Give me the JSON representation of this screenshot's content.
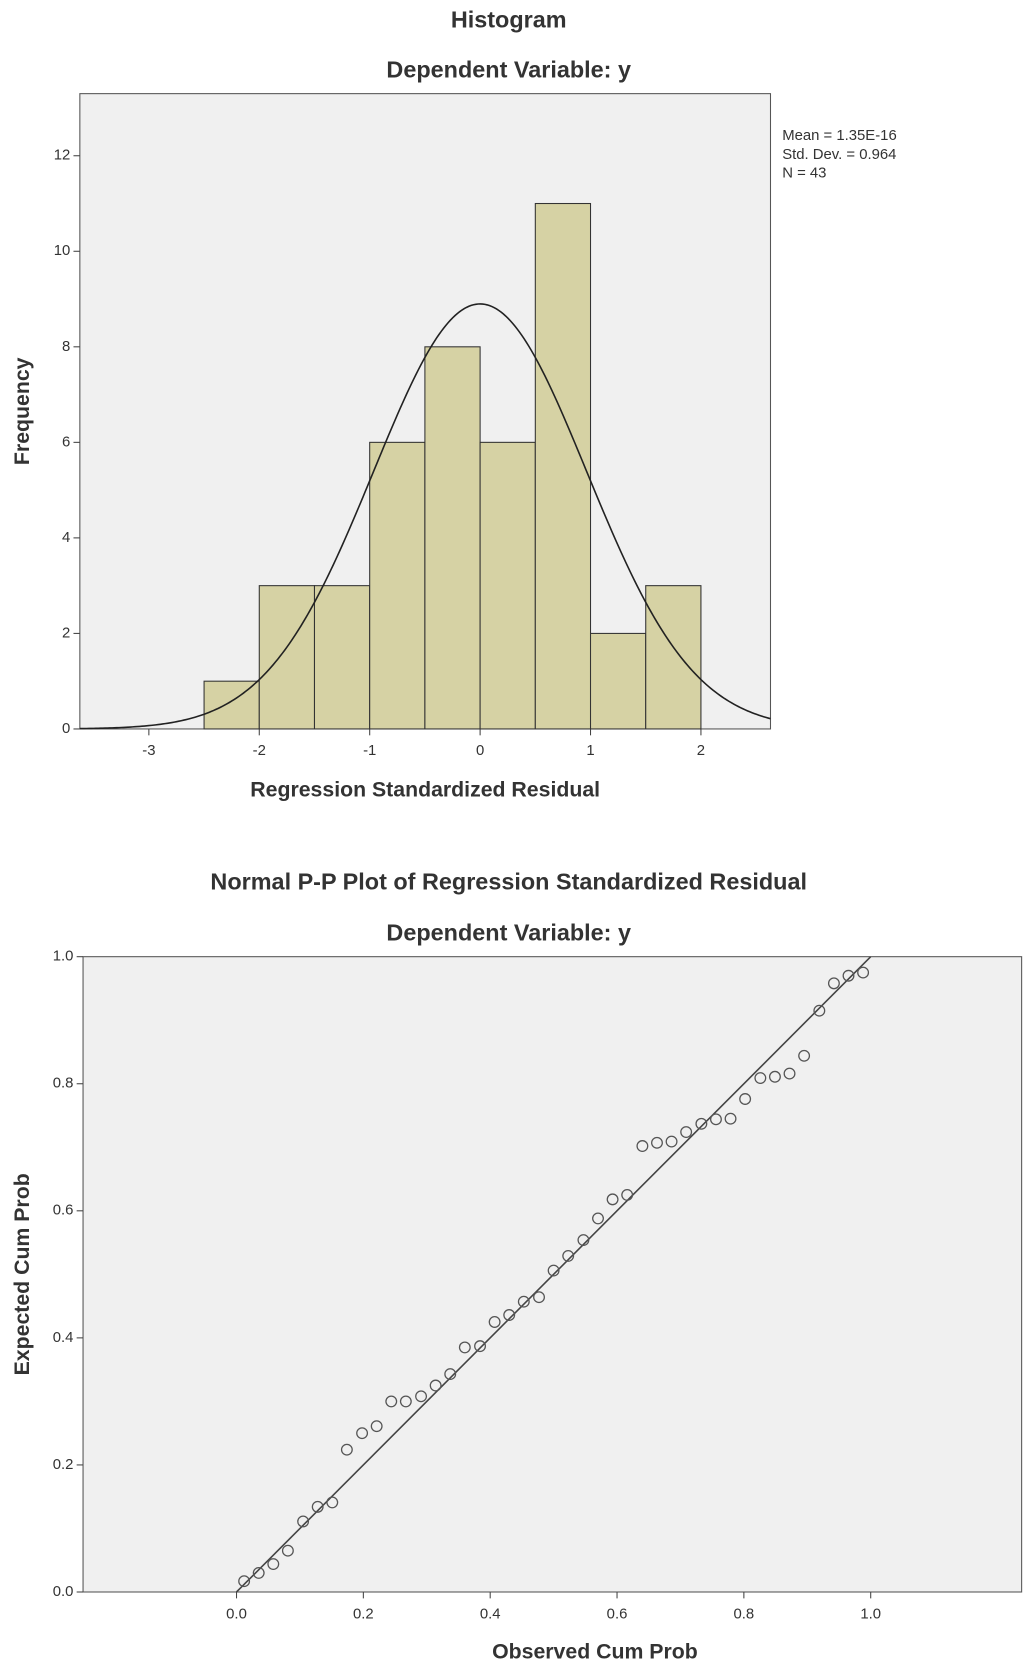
{
  "chart_data": [
    {
      "type": "histogram",
      "title": "Histogram",
      "subtitle": "Dependent Variable: y",
      "bins": [
        -2.5,
        -2.0,
        -1.5,
        -1.0,
        -0.5,
        0.0,
        0.5,
        1.0,
        1.5,
        2.0
      ],
      "values": [
        1,
        3,
        3,
        6,
        8,
        6,
        11,
        2,
        3
      ],
      "color": "#d6d2a4",
      "xlim": [
        -3.625,
        2.63
      ],
      "xticks": [
        -3,
        -2,
        -1,
        0,
        1,
        2
      ],
      "ylim": [
        0,
        13.3
      ],
      "yticks": [
        0,
        2,
        4,
        6,
        8,
        10,
        12
      ],
      "x_label": "Regression Standardized Residual",
      "y_label": "Frequency",
      "stats": [
        {
          "value": 1.35e-16,
          "label": "Mean = 1.35E-16"
        },
        {
          "value": 0.964,
          "label": "Std. Dev. = 0.964"
        },
        {
          "value": 43,
          "label": "N = 43"
        }
      ]
    },
    {
      "type": "scatter",
      "title": "Normal P-P Plot of Regression Standardized Residual",
      "subtitle": "Dependent Variable: y",
      "x": [
        0.012,
        0.035,
        0.058,
        0.081,
        0.105,
        0.128,
        0.151,
        0.174,
        0.198,
        0.221,
        0.244,
        0.267,
        0.291,
        0.314,
        0.337,
        0.36,
        0.384,
        0.407,
        0.43,
        0.453,
        0.477,
        0.5,
        0.523,
        0.547,
        0.57,
        0.593,
        0.616,
        0.64,
        0.663,
        0.686,
        0.709,
        0.733,
        0.756,
        0.779,
        0.802,
        0.826,
        0.849,
        0.872,
        0.895,
        0.919,
        0.942,
        0.965,
        0.988
      ],
      "values": [
        0.017,
        0.03,
        0.044,
        0.065,
        0.111,
        0.134,
        0.141,
        0.224,
        0.25,
        0.261,
        0.3,
        0.3,
        0.308,
        0.325,
        0.343,
        0.385,
        0.387,
        0.425,
        0.436,
        0.457,
        0.464,
        0.506,
        0.529,
        0.554,
        0.588,
        0.618,
        0.625,
        0.702,
        0.707,
        0.709,
        0.724,
        0.737,
        0.744,
        0.745,
        0.776,
        0.809,
        0.811,
        0.816,
        0.844,
        0.915,
        0.958,
        0.97,
        0.975
      ],
      "xlim": [
        -0.242,
        1.238
      ],
      "xticks": [
        {
          "value": 0,
          "label": "0.0"
        },
        {
          "value": 0.2,
          "label": "0.2"
        },
        {
          "value": 0.4,
          "label": "0.4"
        },
        {
          "value": 0.6,
          "label": "0.6"
        },
        {
          "value": 0.8,
          "label": "0.8"
        },
        {
          "value": 1,
          "label": "1.0"
        }
      ],
      "ylim": [
        0,
        1
      ],
      "yticks": [
        {
          "value": 0,
          "label": "0.0"
        },
        {
          "value": 0.2,
          "label": "0.2"
        },
        {
          "value": 0.4,
          "label": "0.4"
        },
        {
          "value": 0.6,
          "label": "0.6"
        },
        {
          "value": 0.8,
          "label": "0.8"
        },
        {
          "value": 1,
          "label": "1.0"
        }
      ],
      "x_label": "Observed Cum Prob",
      "y_label": "Expected Cum Prob"
    }
  ]
}
